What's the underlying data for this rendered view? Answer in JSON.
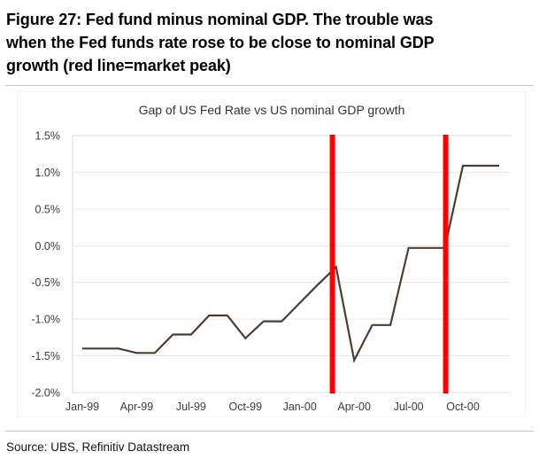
{
  "figure": {
    "title_lines": [
      "Figure 27: Fed fund minus nominal GDP. The trouble was",
      "when the Fed funds rate rose to be close to nominal GDP",
      "growth (red line=market peak)"
    ],
    "source": "Source: UBS, Refinitiv Datastream"
  },
  "chart_data": {
    "type": "line",
    "title": "Gap of US Fed Rate vs US nominal GDP growth",
    "xlabel": "",
    "ylabel": "",
    "ylim": [
      -2.0,
      1.5
    ],
    "grid": "horizontal",
    "legend": "none",
    "x": [
      "Jan-99",
      "Feb-99",
      "Mar-99",
      "Apr-99",
      "May-99",
      "Jun-99",
      "Jul-99",
      "Aug-99",
      "Sep-99",
      "Oct-99",
      "Nov-99",
      "Dec-99",
      "Jan-00",
      "Feb-00",
      "Mar-00",
      "Apr-00",
      "May-00",
      "Jun-00",
      "Jul-00",
      "Aug-00",
      "Sep-00",
      "Oct-00",
      "Nov-00",
      "Dec-00"
    ],
    "series": [
      {
        "name": "Fed funds rate minus US nominal GDP growth (%)",
        "color": "#4a3e33",
        "values": [
          -1.4,
          -1.4,
          -1.4,
          -1.46,
          -1.46,
          -1.21,
          -1.21,
          -0.95,
          -0.95,
          -1.26,
          -1.03,
          -1.03,
          -0.78,
          -0.53,
          -0.29,
          -1.56,
          -1.08,
          -1.08,
          -0.03,
          -0.03,
          -0.03,
          1.09,
          1.09,
          1.09
        ]
      }
    ],
    "x_tick_labels": [
      "Jan-99",
      "Apr-99",
      "Jul-99",
      "Oct-99",
      "Jan-00",
      "Apr-00",
      "Jul-00",
      "Oct-00"
    ],
    "x_tick_indices": [
      0,
      3,
      6,
      9,
      12,
      15,
      18,
      21
    ],
    "y_ticks": [
      1.5,
      1.0,
      0.5,
      0.0,
      -0.5,
      -1.0,
      -1.5,
      -2.0
    ],
    "y_tick_labels": [
      "1.5%",
      "1.0%",
      "0.5%",
      "0.0%",
      "-0.5%",
      "-1.0%",
      "-1.5%",
      "-2.0%"
    ],
    "vlines": [
      {
        "label": "market peak",
        "month_index": 13.8,
        "color": "#fb0000"
      },
      {
        "label": "market peak",
        "month_index": 20.05,
        "color": "#fb0000"
      }
    ],
    "colors": {
      "gridline": "#e8e8e8",
      "axis_border": "#d8d8d8",
      "tick_text": "#3c3c3c"
    }
  }
}
